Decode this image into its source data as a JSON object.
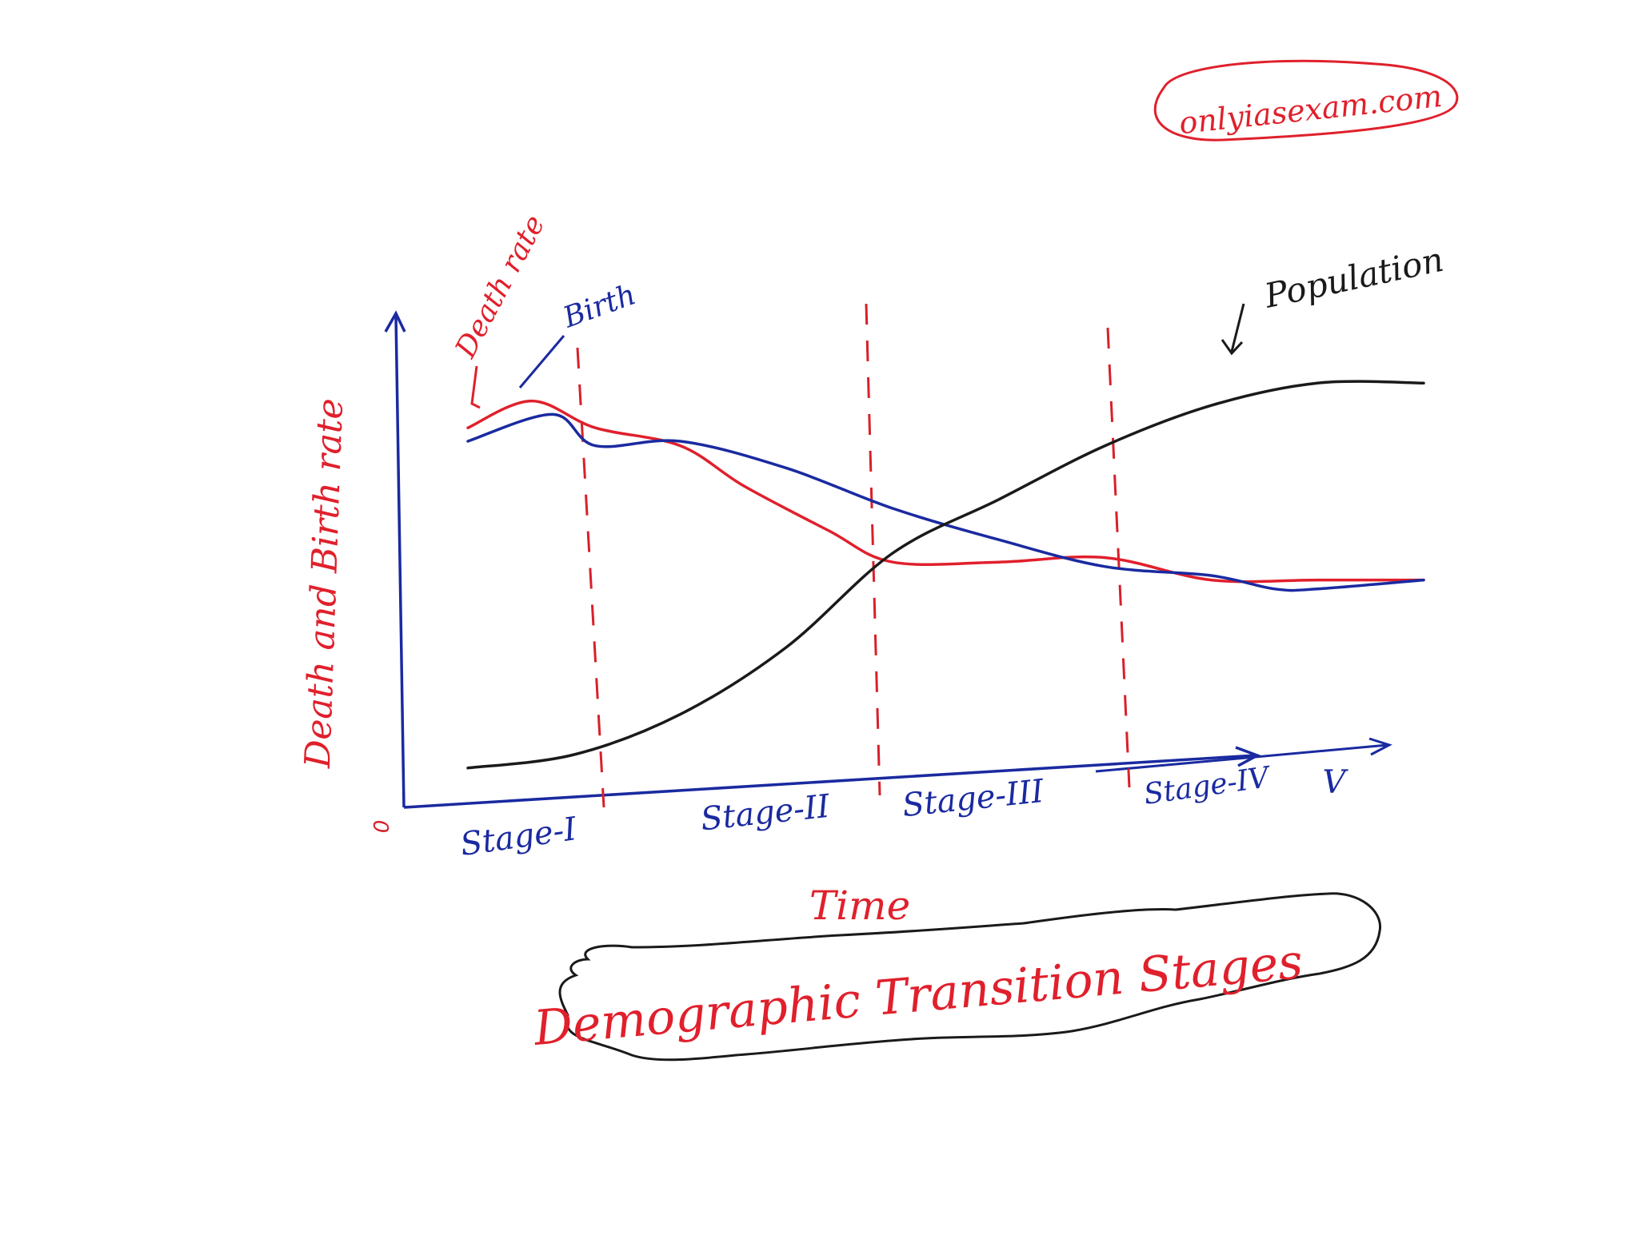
{
  "watermark": "onlyiasexam.com",
  "title": "Demographic Transition Stages",
  "axes": {
    "xlabel": "Time",
    "ylabel": "Death and Birth rate",
    "origin": "0"
  },
  "stages": [
    "Stage-I",
    "Stage-II",
    "Stage-III",
    "Stage-IV",
    "V"
  ],
  "curves": {
    "death_label": "Death rate",
    "birth_label": "Birth",
    "population_label": "Population"
  },
  "colors": {
    "death": "#e0202c",
    "birth": "#1a2aa0",
    "population": "#1a1a1a",
    "axis": "#1a2aa0",
    "stage_divider": "#d8202a"
  },
  "chart_data": {
    "type": "line",
    "xlabel": "Time",
    "ylabel": "Death and Birth rate",
    "categories": [
      "Stage-I",
      "Stage-II",
      "Stage-III",
      "Stage-IV",
      "V"
    ],
    "series": [
      {
        "name": "Death rate",
        "x": [
          0.0,
          0.3,
          0.6,
          1.0,
          1.3,
          1.7,
          2.0,
          2.5,
          3.0,
          3.5,
          4.0,
          4.5
        ],
        "y": [
          0.83,
          0.89,
          0.83,
          0.79,
          0.7,
          0.6,
          0.53,
          0.53,
          0.54,
          0.49,
          0.49,
          0.49
        ]
      },
      {
        "name": "Birth",
        "x": [
          0.0,
          0.4,
          0.6,
          1.0,
          1.5,
          2.0,
          2.5,
          3.0,
          3.5,
          3.8,
          4.0,
          4.5
        ],
        "y": [
          0.8,
          0.86,
          0.79,
          0.8,
          0.74,
          0.65,
          0.58,
          0.52,
          0.5,
          0.47,
          0.47,
          0.49
        ]
      },
      {
        "name": "Population",
        "x": [
          0.0,
          0.5,
          1.0,
          1.5,
          2.0,
          2.5,
          3.0,
          3.5,
          4.0,
          4.5
        ],
        "y": [
          0.07,
          0.1,
          0.19,
          0.34,
          0.55,
          0.67,
          0.79,
          0.88,
          0.93,
          0.93
        ]
      }
    ]
  }
}
